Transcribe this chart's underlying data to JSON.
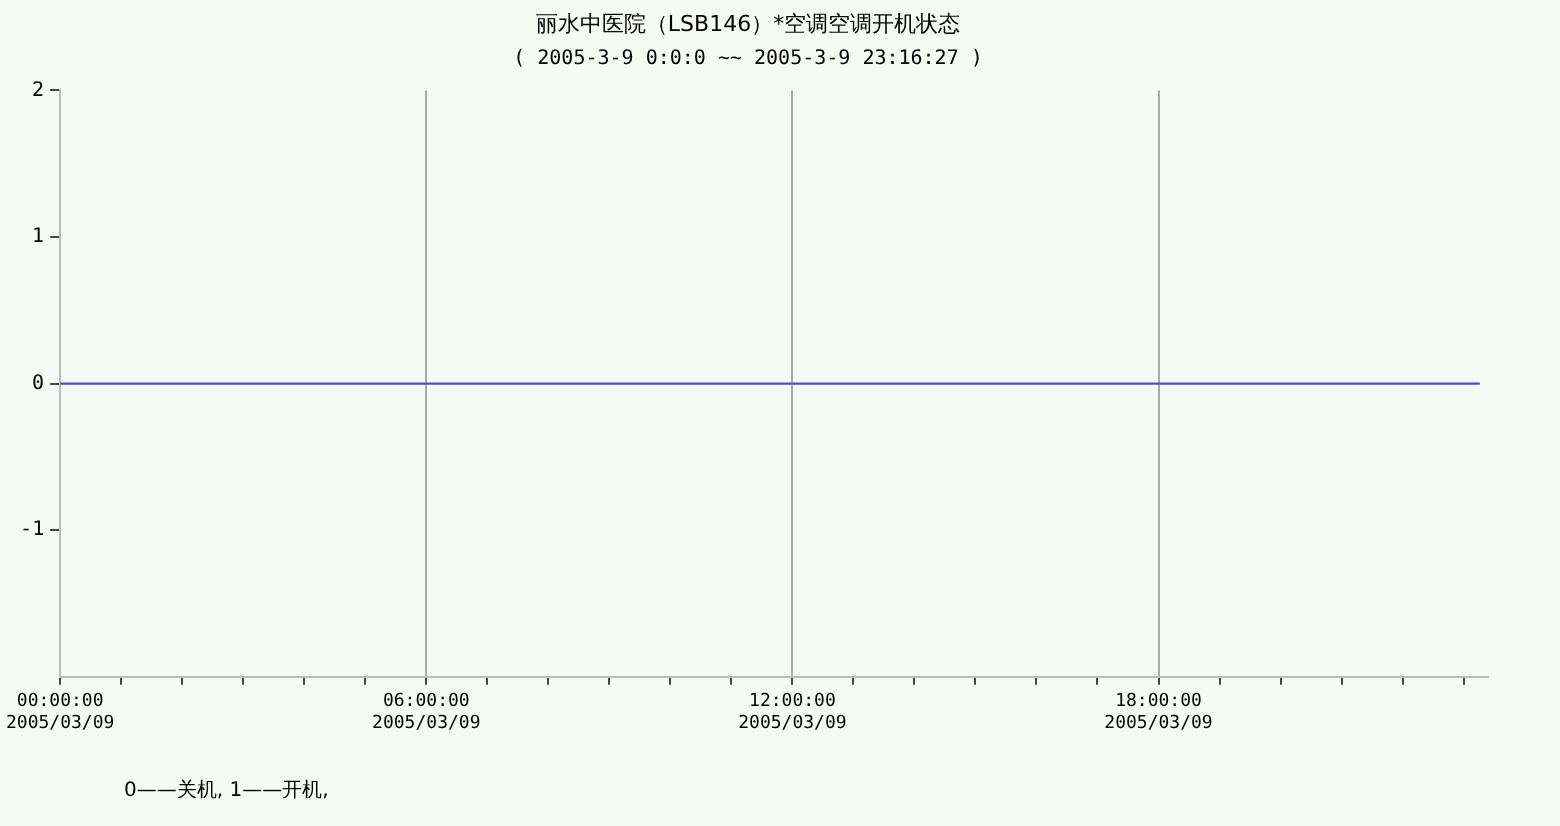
{
  "chart_data": {
    "type": "line",
    "title": "丽水中医院（LSB146）*空调空调开机状态",
    "subtitle": "( 2005-3-9 0:0:0 ~~ 2005-3-9 23:16:27 )",
    "annotations": [
      "0——关机, 1——开机,"
    ],
    "series": [
      {
        "color": "#4b4bdc",
        "x": [
          "2005-03-09T00:00",
          "2005-03-09T23:16"
        ],
        "values": [
          0,
          0
        ]
      }
    ],
    "xlim": [
      "2005-03-09T00:00",
      "2005-03-09T23:24"
    ],
    "xticks": [
      {
        "value": "2005-03-09T00:00",
        "label": "00:00:00\n2005/03/09"
      },
      {
        "value": "2005-03-09T01:00",
        "label": null
      },
      {
        "value": "2005-03-09T02:00",
        "label": null
      },
      {
        "value": "2005-03-09T03:00",
        "label": null
      },
      {
        "value": "2005-03-09T04:00",
        "label": null
      },
      {
        "value": "2005-03-09T05:00",
        "label": null
      },
      {
        "value": "2005-03-09T06:00",
        "label": "06:00:00\n2005/03/09"
      },
      {
        "value": "2005-03-09T07:00",
        "label": null
      },
      {
        "value": "2005-03-09T08:00",
        "label": null
      },
      {
        "value": "2005-03-09T09:00",
        "label": null
      },
      {
        "value": "2005-03-09T10:00",
        "label": null
      },
      {
        "value": "2005-03-09T11:00",
        "label": null
      },
      {
        "value": "2005-03-09T12:00",
        "label": "12:00:00\n2005/03/09"
      },
      {
        "value": "2005-03-09T13:00",
        "label": null
      },
      {
        "value": "2005-03-09T14:00",
        "label": null
      },
      {
        "value": "2005-03-09T15:00",
        "label": null
      },
      {
        "value": "2005-03-09T16:00",
        "label": null
      },
      {
        "value": "2005-03-09T17:00",
        "label": null
      },
      {
        "value": "2005-03-09T18:00",
        "label": "18:00:00\n2005/03/09"
      },
      {
        "value": "2005-03-09T19:00",
        "label": null
      },
      {
        "value": "2005-03-09T20:00",
        "label": null
      },
      {
        "value": "2005-03-09T21:00",
        "label": null
      },
      {
        "value": "2005-03-09T22:00",
        "label": null
      },
      {
        "value": "2005-03-09T23:00",
        "label": null
      }
    ],
    "ylim": [
      -2,
      2
    ],
    "yticks": [
      -1,
      0,
      1,
      2
    ],
    "grid": "x",
    "legend": false,
    "marker": "none",
    "line_style": "solid"
  }
}
